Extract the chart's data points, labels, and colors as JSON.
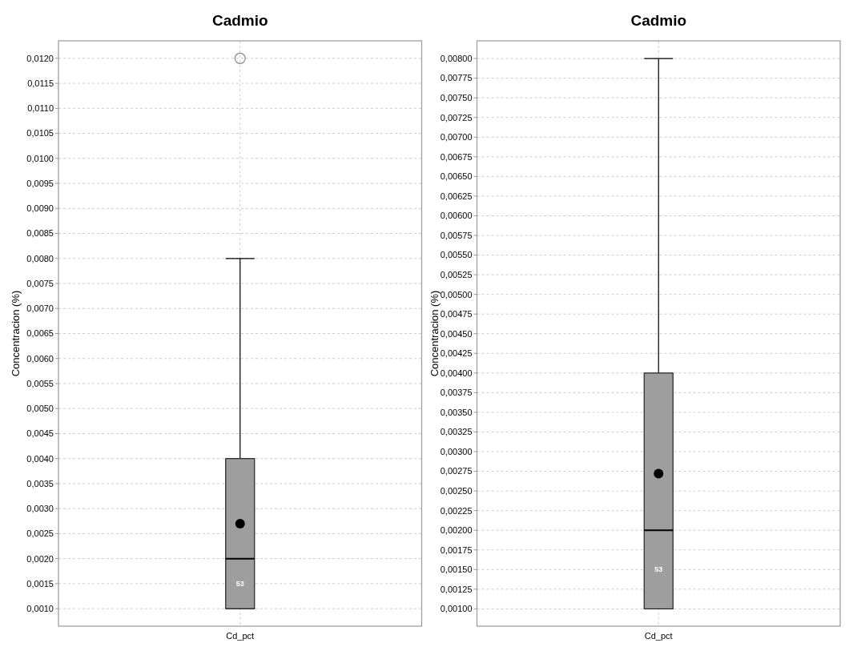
{
  "chart_data": [
    {
      "type": "box",
      "title": "Cadmio",
      "ylabel": "Concentracion (%)",
      "categories": [
        "Cd_pct"
      ],
      "color": "#9e9e9e",
      "grid": true,
      "boxes": [
        {
          "low": 0.001,
          "q1": 0.001,
          "median": 0.002,
          "q3": 0.004,
          "high": 0.008,
          "mean": 0.0027,
          "outliers": [
            0.012
          ]
        }
      ],
      "ylim": [
        0.00065,
        0.01235
      ],
      "yticks": [
        {
          "value": 0.001,
          "label": "0,0010"
        },
        {
          "value": 0.0015,
          "label": "0,0015"
        },
        {
          "value": 0.002,
          "label": "0,0020"
        },
        {
          "value": 0.0025,
          "label": "0,0025"
        },
        {
          "value": 0.003,
          "label": "0,0030"
        },
        {
          "value": 0.0035,
          "label": "0,0035"
        },
        {
          "value": 0.004,
          "label": "0,0040"
        },
        {
          "value": 0.0045,
          "label": "0,0045"
        },
        {
          "value": 0.005,
          "label": "0,0050"
        },
        {
          "value": 0.0055,
          "label": "0,0055"
        },
        {
          "value": 0.006,
          "label": "0,0060"
        },
        {
          "value": 0.0065,
          "label": "0,0065"
        },
        {
          "value": 0.007,
          "label": "0,0070"
        },
        {
          "value": 0.0075,
          "label": "0,0075"
        },
        {
          "value": 0.008,
          "label": "0,0080"
        },
        {
          "value": 0.0085,
          "label": "0,0085"
        },
        {
          "value": 0.009,
          "label": "0,0090"
        },
        {
          "value": 0.0095,
          "label": "0,0095"
        },
        {
          "value": 0.01,
          "label": "0,0100"
        },
        {
          "value": 0.0105,
          "label": "0,0105"
        },
        {
          "value": 0.011,
          "label": "0,0110"
        },
        {
          "value": 0.0115,
          "label": "0,0115"
        },
        {
          "value": 0.012,
          "label": "0,0120"
        }
      ],
      "annotations": [
        "53"
      ]
    },
    {
      "type": "box",
      "title": "Cadmio",
      "ylabel": "Concentracion (%)",
      "categories": [
        "Cd_pct"
      ],
      "color": "#9e9e9e",
      "grid": true,
      "boxes": [
        {
          "low": 0.001,
          "q1": 0.001,
          "median": 0.002,
          "q3": 0.004,
          "high": 0.008,
          "mean": 0.00272
        }
      ],
      "ylim": [
        0.00078,
        0.008225
      ],
      "yticks": [
        {
          "value": 0.001,
          "label": "0,00100"
        },
        {
          "value": 0.00125,
          "label": "0,00125"
        },
        {
          "value": 0.0015,
          "label": "0,00150"
        },
        {
          "value": 0.00175,
          "label": "0,00175"
        },
        {
          "value": 0.002,
          "label": "0,00200"
        },
        {
          "value": 0.00225,
          "label": "0,00225"
        },
        {
          "value": 0.0025,
          "label": "0,00250"
        },
        {
          "value": 0.00275,
          "label": "0,00275"
        },
        {
          "value": 0.003,
          "label": "0,00300"
        },
        {
          "value": 0.00325,
          "label": "0,00325"
        },
        {
          "value": 0.0035,
          "label": "0,00350"
        },
        {
          "value": 0.00375,
          "label": "0,00375"
        },
        {
          "value": 0.004,
          "label": "0,00400"
        },
        {
          "value": 0.00425,
          "label": "0,00425"
        },
        {
          "value": 0.0045,
          "label": "0,00450"
        },
        {
          "value": 0.00475,
          "label": "0,00475"
        },
        {
          "value": 0.005,
          "label": "0,00500"
        },
        {
          "value": 0.00525,
          "label": "0,00525"
        },
        {
          "value": 0.0055,
          "label": "0,00550"
        },
        {
          "value": 0.00575,
          "label": "0,00575"
        },
        {
          "value": 0.006,
          "label": "0,00600"
        },
        {
          "value": 0.00625,
          "label": "0,00625"
        },
        {
          "value": 0.0065,
          "label": "0,00650"
        },
        {
          "value": 0.00675,
          "label": "0,00675"
        },
        {
          "value": 0.007,
          "label": "0,00700"
        },
        {
          "value": 0.00725,
          "label": "0,00725"
        },
        {
          "value": 0.0075,
          "label": "0,00750"
        },
        {
          "value": 0.00775,
          "label": "0,00775"
        },
        {
          "value": 0.008,
          "label": "0,00800"
        }
      ],
      "annotations": [
        "53"
      ]
    }
  ]
}
